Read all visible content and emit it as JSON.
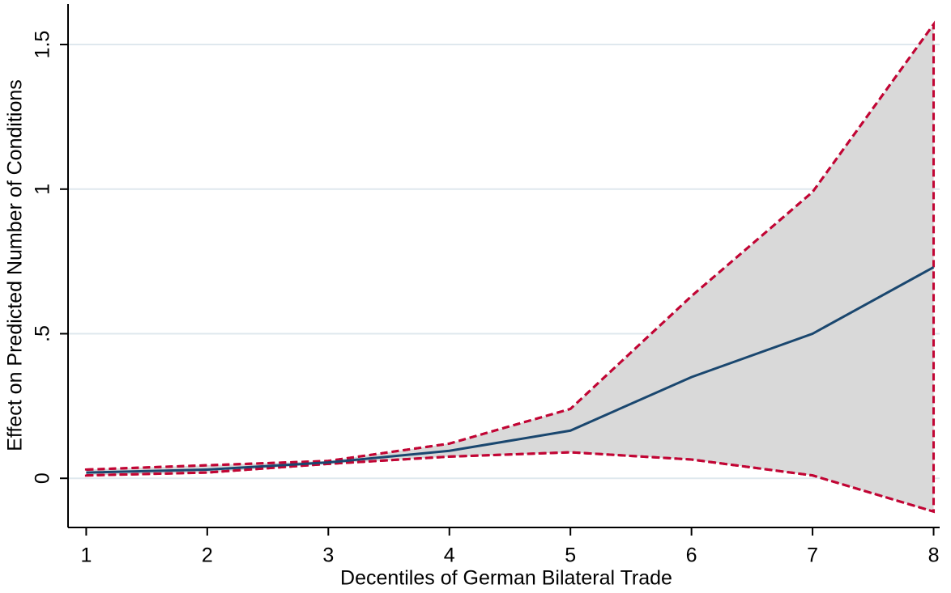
{
  "chart_data": {
    "type": "line",
    "x_label": "Decentiles of German Bilateral Trade",
    "y_label": "Effect on Predicted Number of Conditions",
    "x": [
      1,
      2,
      3,
      4,
      5,
      6,
      7,
      8
    ],
    "xlim": [
      0.85,
      8.05
    ],
    "xticks": [
      1,
      2,
      3,
      4,
      5,
      6,
      7,
      8
    ],
    "ylim": [
      -0.17,
      1.64
    ],
    "yticks": [
      0,
      {
        "value": 0.5,
        "label": ".5"
      },
      1,
      1.5
    ],
    "grid": true,
    "grid_color": "#dfe8ee",
    "band_color": "#d9d9d9",
    "series": [
      {
        "color": "#1a476f",
        "dashed": false,
        "values": [
          0.02,
          0.03,
          0.055,
          0.095,
          0.165,
          0.35,
          0.5,
          0.73
        ]
      },
      {
        "color": "#c10534",
        "dashed": true,
        "values": [
          0.03,
          0.045,
          0.06,
          0.12,
          0.24,
          0.63,
          0.99,
          1.57
        ]
      },
      {
        "color": "#c10534",
        "dashed": true,
        "values": [
          0.01,
          0.02,
          0.05,
          0.075,
          0.09,
          0.065,
          0.01,
          -0.115
        ]
      }
    ]
  }
}
